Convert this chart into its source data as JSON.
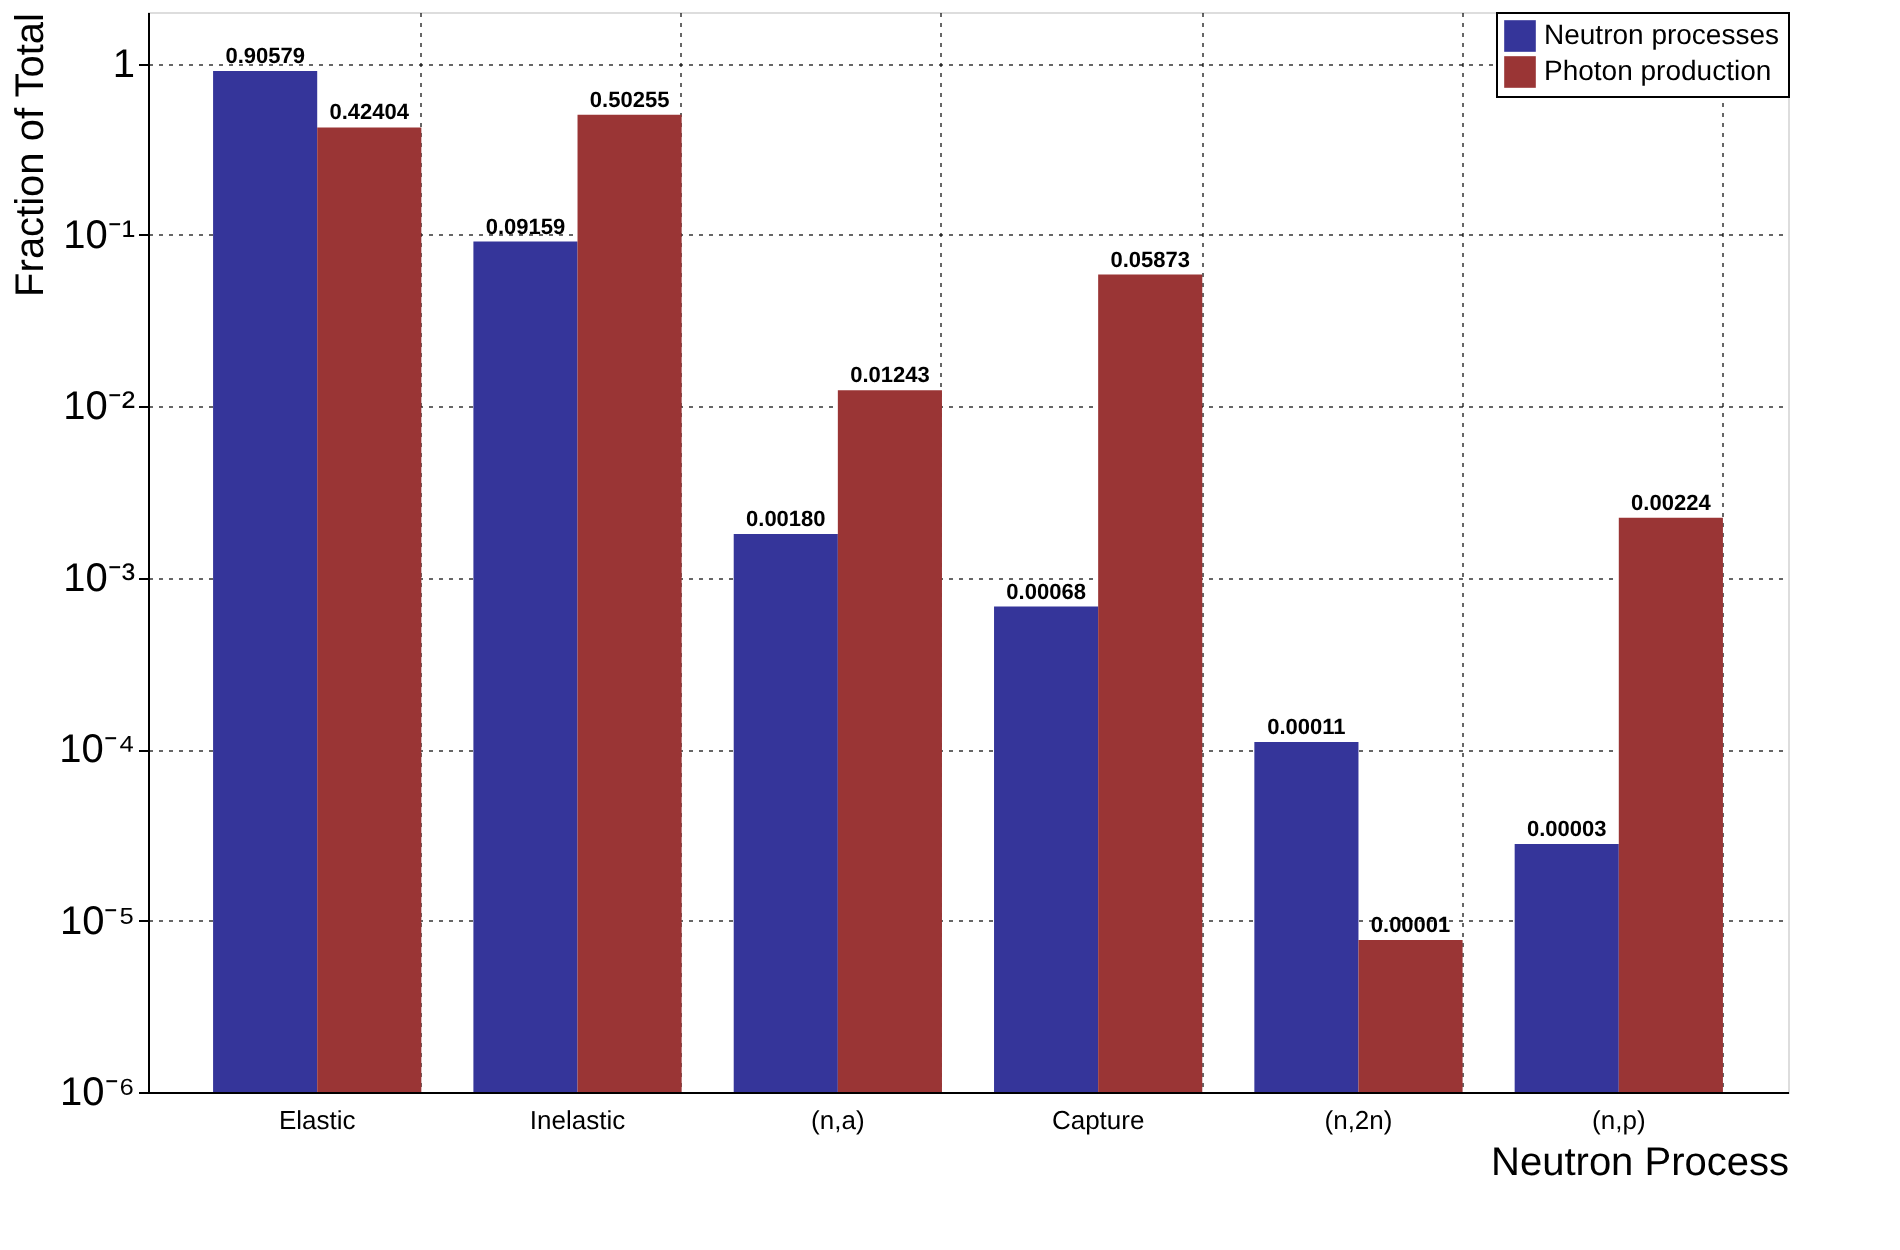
{
  "chart_data": {
    "type": "bar",
    "xlabel": "Neutron Process",
    "ylabel": "Fraction of Total",
    "categories": [
      "Elastic",
      "Inelastic",
      "(n,a)",
      "Capture",
      "(n,2n)",
      "(n,p)"
    ],
    "series": [
      {
        "name": "Neutron processes",
        "color": "#35359a",
        "values": [
          0.90579,
          0.09159,
          0.0018,
          0.00068,
          0.00011,
          2.8e-05
        ],
        "value_labels": [
          "0.90579",
          "0.09159",
          "0.00180",
          "0.00068",
          "0.00011",
          "0.00003"
        ]
      },
      {
        "name": "Photon production",
        "color": "#9a3535",
        "values": [
          0.42404,
          0.50255,
          0.01243,
          0.05873,
          7.7e-06,
          0.00224
        ],
        "value_labels": [
          "0.42404",
          "0.50255",
          "0.01243",
          "0.05873",
          "0.00001",
          "0.00224"
        ]
      }
    ],
    "log": "y",
    "ylim": [
      1e-06,
      2
    ],
    "yticks": [
      {
        "value": 1,
        "label": "1"
      },
      {
        "value": 0.1,
        "label": "10⁻¹"
      },
      {
        "value": 0.01,
        "label": "10⁻²"
      },
      {
        "value": 0.001,
        "label": "10⁻³"
      },
      {
        "value": 0.0001,
        "label": "10⁻⁴"
      },
      {
        "value": 1e-05,
        "label": "10⁻⁵"
      },
      {
        "value": 1e-06,
        "label": "10⁻⁶"
      }
    ],
    "grid": true,
    "legend": "top right"
  }
}
